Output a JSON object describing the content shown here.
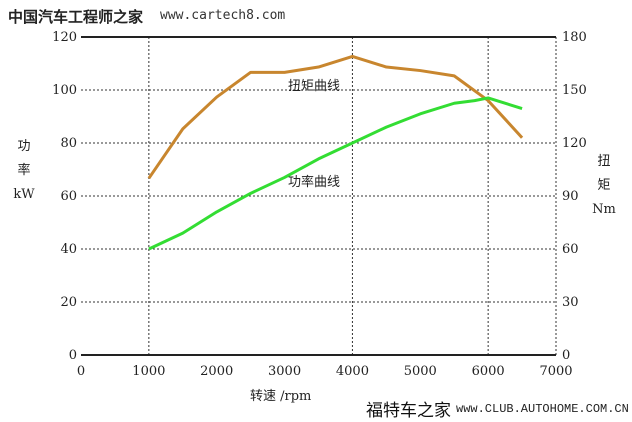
{
  "watermarks": {
    "top_title": "中国汽车工程师之家",
    "top_url": "www.cartech8.com",
    "bottom_title": "福特车之家",
    "bottom_url": "www.CLUB.AUTOHOME.COM.CN"
  },
  "chart_data": {
    "type": "line",
    "xlabel": "转速 /rpm",
    "ylabel_left": [
      "功",
      "率",
      "kW"
    ],
    "ylabel_right": [
      "扭",
      "矩",
      "Nm"
    ],
    "xlim": [
      0,
      7000
    ],
    "ylim_left": [
      0,
      120
    ],
    "ylim_right": [
      0,
      180
    ],
    "xticks": [
      0,
      1000,
      2000,
      3000,
      4000,
      5000,
      6000,
      7000
    ],
    "yticks_left": [
      0,
      20,
      40,
      60,
      80,
      100,
      120
    ],
    "yticks_right": [
      0,
      30,
      60,
      90,
      120,
      150,
      180
    ],
    "grid": {
      "vertical": [
        1000,
        4000,
        6000
      ],
      "horizontal": [
        20,
        40,
        60,
        80,
        100
      ]
    },
    "series": [
      {
        "name": "扭矩曲线",
        "axis": "right",
        "color": "#c8862e",
        "x": [
          1000,
          1500,
          2000,
          2500,
          3000,
          3500,
          4000,
          4500,
          5000,
          5500,
          6000,
          6500
        ],
        "values": [
          100,
          128,
          146,
          160,
          160,
          163,
          169,
          163,
          161,
          158,
          144,
          123
        ]
      },
      {
        "name": "功率曲线",
        "axis": "left",
        "color": "#33dd33",
        "x": [
          1000,
          1500,
          2000,
          2500,
          3000,
          3500,
          4000,
          4500,
          5000,
          5500,
          5800,
          6000,
          6500
        ],
        "values": [
          40,
          46,
          54,
          61,
          67,
          74,
          80,
          86,
          91,
          95,
          96,
          97,
          93
        ]
      }
    ]
  }
}
